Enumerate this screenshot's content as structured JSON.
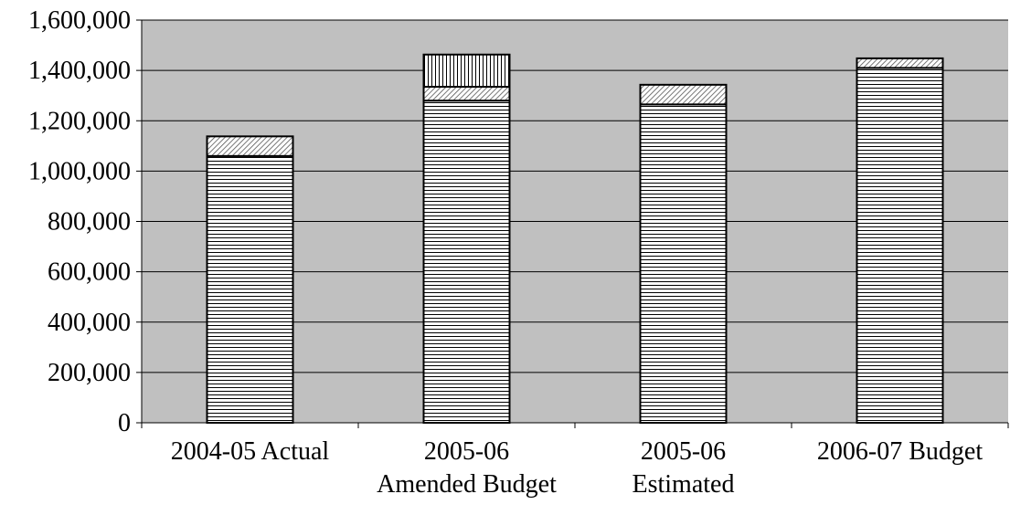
{
  "chart_data": {
    "type": "bar",
    "stacked": true,
    "categories": [
      [
        "2004-05 Actual"
      ],
      [
        "2005-06",
        "Amended Budget"
      ],
      [
        "2005-06",
        "Estimated"
      ],
      [
        "2006-07 Budget"
      ]
    ],
    "series": [
      {
        "pattern": "horizontal-lines",
        "values": [
          1060000,
          1280000,
          1265000,
          1410000
        ]
      },
      {
        "pattern": "diagonal-hatch",
        "values": [
          78000,
          55000,
          78000,
          38000
        ]
      },
      {
        "pattern": "vertical-lines",
        "values": [
          0,
          128000,
          0,
          0
        ]
      }
    ],
    "ylim": [
      0,
      1600000
    ],
    "yticks": [
      0,
      200000,
      400000,
      600000,
      800000,
      1000000,
      1200000,
      1400000,
      1600000
    ],
    "ytick_labels": [
      "0",
      "200,000",
      "400,000",
      "600,000",
      "800,000",
      "1,000,000",
      "1,200,000",
      "1,400,000",
      "1,600,000"
    ],
    "grid": true,
    "legend": "none",
    "colors": {
      "plot_background": "#c0c0c0",
      "bar_fill": "#ffffff",
      "line": "#000000"
    }
  }
}
